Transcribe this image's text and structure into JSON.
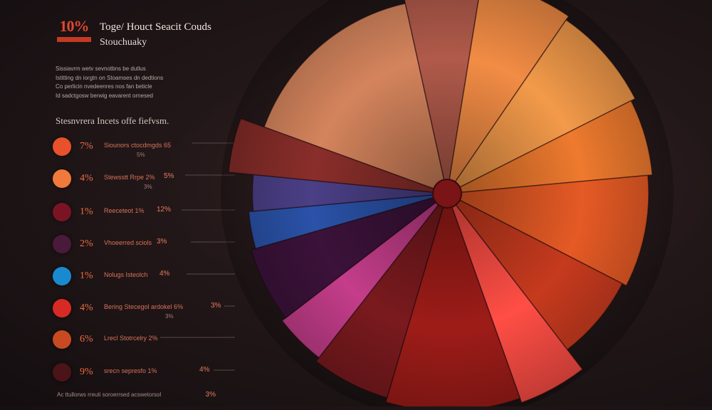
{
  "header": {
    "logo_text": "10%",
    "title": "Toge/ Houct Seacit Couds",
    "subtitle": "Stouchuaky"
  },
  "description": [
    "Sissiavrm wetv sevnotbns be dutlus",
    "Istitting dn iorgtn on Stoamses dn dedtions",
    "Co perlicin nvedeenres nos fan beticle",
    "Id sadctgosw berwig eavarent ornesed"
  ],
  "legend_title": "Stesnvrera Incets offe fiefvsm.",
  "legend": [
    {
      "color": "#e8512b",
      "percent": "7%",
      "label": "Siounors ctocdmgds 65",
      "value": "",
      "sub": "5%"
    },
    {
      "color": "#f07a3c",
      "percent": "4%",
      "label": "Stewsstt Rrpe 2%",
      "value": "5%",
      "sub": "3%"
    },
    {
      "color": "#7a1424",
      "percent": "1%",
      "label": "Reeceteot 1%",
      "value": "12%",
      "sub": ""
    },
    {
      "color": "#4a1a3a",
      "percent": "2%",
      "label": "Vhoeerred sciols",
      "value": "3%",
      "sub": ""
    },
    {
      "color": "#1a8ad0",
      "percent": "1%",
      "label": "Nolugs Isteolch",
      "value": "4%",
      "sub": ""
    },
    {
      "color": "#d82a24",
      "percent": "4%",
      "label": "Bering Stecegol ardokel 6%",
      "value": "3%",
      "sub": "3%"
    },
    {
      "color": "#c84a22",
      "percent": "6%",
      "label": "Lrecl Stotrcelry 2%",
      "value": "",
      "sub": ""
    },
    {
      "color": "#4a1418",
      "percent": "9%",
      "label": "srecn sepresfo 1%",
      "value": "4%",
      "sub": ""
    }
  ],
  "footer": "Ac ttullorws rreuti soroerrsed acswetorsol",
  "footer_value": "3%",
  "chart_data": {
    "type": "pie",
    "title": "Toge/ Houct Seacit Couds",
    "slices": [
      {
        "color": "#d4845c",
        "value": 16
      },
      {
        "color": "#b05a4a",
        "value": 6
      },
      {
        "color": "#f28c45",
        "value": 7
      },
      {
        "color": "#f39a4a",
        "value": 8
      },
      {
        "color": "#ee7a2e",
        "value": 6
      },
      {
        "color": "#e55a25",
        "value": 9
      },
      {
        "color": "#c63a1e",
        "value": 7
      },
      {
        "color": "#ff4e45",
        "value": 5
      },
      {
        "color": "#9e1c18",
        "value": 10
      },
      {
        "color": "#7a1a1e",
        "value": 6
      },
      {
        "color": "#c43d8a",
        "value": 4
      },
      {
        "color": "#3b123a",
        "value": 6
      },
      {
        "color": "#2a52a8",
        "value": 3
      },
      {
        "color": "#4b3f86",
        "value": 3
      },
      {
        "color": "#8a2e2a",
        "value": 4
      }
    ]
  }
}
